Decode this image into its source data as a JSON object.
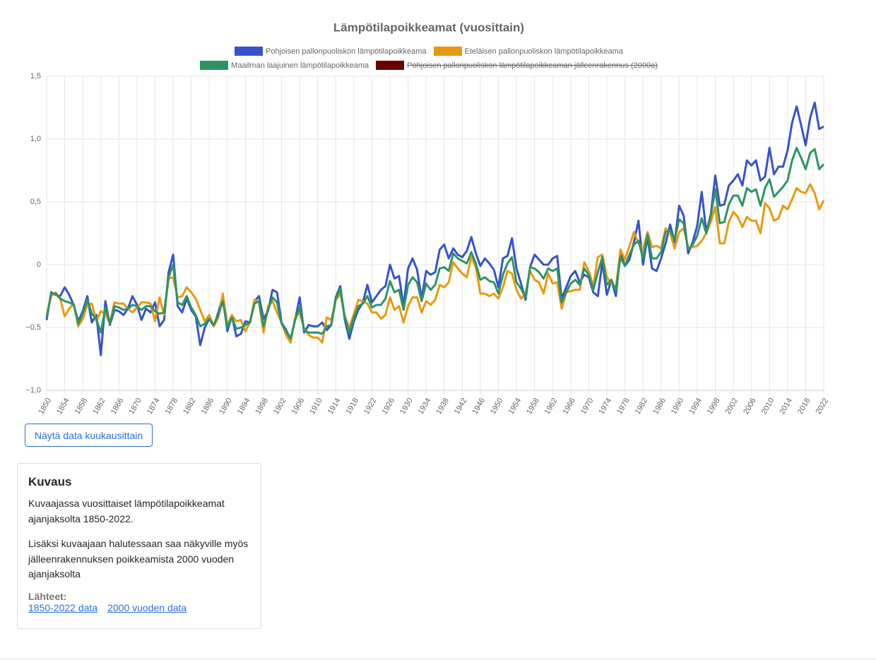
{
  "chart_data": {
    "type": "line",
    "title": "Lämpötilapoikkeamat (vuosittain)",
    "x": [
      1850,
      1851,
      1852,
      1853,
      1854,
      1855,
      1856,
      1857,
      1858,
      1859,
      1860,
      1861,
      1862,
      1863,
      1864,
      1865,
      1866,
      1867,
      1868,
      1869,
      1870,
      1871,
      1872,
      1873,
      1874,
      1875,
      1876,
      1877,
      1878,
      1879,
      1880,
      1881,
      1882,
      1883,
      1884,
      1885,
      1886,
      1887,
      1888,
      1889,
      1890,
      1891,
      1892,
      1893,
      1894,
      1895,
      1896,
      1897,
      1898,
      1899,
      1900,
      1901,
      1902,
      1903,
      1904,
      1905,
      1906,
      1907,
      1908,
      1909,
      1910,
      1911,
      1912,
      1913,
      1914,
      1915,
      1916,
      1917,
      1918,
      1919,
      1920,
      1921,
      1922,
      1923,
      1924,
      1925,
      1926,
      1927,
      1928,
      1929,
      1930,
      1931,
      1932,
      1933,
      1934,
      1935,
      1936,
      1937,
      1938,
      1939,
      1940,
      1941,
      1942,
      1943,
      1944,
      1945,
      1946,
      1947,
      1948,
      1949,
      1950,
      1951,
      1952,
      1953,
      1954,
      1955,
      1956,
      1957,
      1958,
      1959,
      1960,
      1961,
      1962,
      1963,
      1964,
      1965,
      1966,
      1967,
      1968,
      1969,
      1970,
      1971,
      1972,
      1973,
      1974,
      1975,
      1976,
      1977,
      1978,
      1979,
      1980,
      1981,
      1982,
      1983,
      1984,
      1985,
      1986,
      1987,
      1988,
      1989,
      1990,
      1991,
      1992,
      1993,
      1994,
      1995,
      1996,
      1997,
      1998,
      1999,
      2000,
      2001,
      2002,
      2003,
      2004,
      2005,
      2006,
      2007,
      2008,
      2009,
      2010,
      2011,
      2012,
      2013,
      2014,
      2015,
      2016,
      2017,
      2018,
      2019,
      2020,
      2021,
      2022
    ],
    "series": [
      {
        "name": "Pohjoisen pallonpuoliskon lämpötilapoikkeama",
        "color": "#3653c9",
        "values": [
          -0.44,
          -0.22,
          -0.24,
          -0.25,
          -0.18,
          -0.24,
          -0.32,
          -0.45,
          -0.37,
          -0.25,
          -0.46,
          -0.4,
          -0.72,
          -0.29,
          -0.48,
          -0.36,
          -0.37,
          -0.4,
          -0.35,
          -0.25,
          -0.32,
          -0.44,
          -0.35,
          -0.38,
          -0.3,
          -0.49,
          -0.44,
          -0.06,
          0.08,
          -0.33,
          -0.38,
          -0.27,
          -0.36,
          -0.41,
          -0.64,
          -0.5,
          -0.43,
          -0.49,
          -0.38,
          -0.25,
          -0.53,
          -0.41,
          -0.57,
          -0.55,
          -0.45,
          -0.46,
          -0.29,
          -0.25,
          -0.43,
          -0.37,
          -0.2,
          -0.22,
          -0.46,
          -0.52,
          -0.59,
          -0.44,
          -0.26,
          -0.54,
          -0.48,
          -0.49,
          -0.49,
          -0.46,
          -0.52,
          -0.48,
          -0.26,
          -0.17,
          -0.44,
          -0.59,
          -0.45,
          -0.36,
          -0.3,
          -0.16,
          -0.3,
          -0.25,
          -0.2,
          -0.17,
          0.0,
          -0.11,
          -0.09,
          -0.33,
          -0.03,
          0.05,
          -0.04,
          -0.27,
          -0.05,
          -0.08,
          -0.06,
          0.12,
          0.16,
          0.05,
          0.13,
          0.08,
          0.06,
          0.11,
          0.22,
          0.09,
          -0.01,
          0.05,
          0.01,
          -0.04,
          -0.18,
          0.05,
          0.07,
          0.21,
          -0.03,
          -0.15,
          -0.28,
          -0.02,
          0.08,
          0.04,
          0.0,
          0.0,
          0.05,
          0.07,
          -0.27,
          -0.18,
          -0.09,
          -0.05,
          -0.14,
          -0.08,
          -0.1,
          -0.22,
          -0.25,
          0.02,
          -0.24,
          -0.12,
          -0.25,
          0.1,
          -0.01,
          0.04,
          0.18,
          0.35,
          0.0,
          0.22,
          -0.03,
          -0.05,
          0.05,
          0.17,
          0.32,
          0.18,
          0.47,
          0.39,
          0.09,
          0.18,
          0.31,
          0.58,
          0.26,
          0.4,
          0.71,
          0.47,
          0.48,
          0.63,
          0.67,
          0.72,
          0.63,
          0.83,
          0.79,
          0.83,
          0.67,
          0.7,
          0.93,
          0.72,
          0.78,
          0.78,
          0.91,
          1.13,
          1.26,
          1.11,
          0.95,
          1.17,
          1.29,
          1.08,
          1.1
        ]
      },
      {
        "name": "Eteläisen pallonpuoliskon lämpötilapoikkeama",
        "color": "#e8990f",
        "values": [
          -0.41,
          -0.25,
          -0.22,
          -0.27,
          -0.41,
          -0.35,
          -0.31,
          -0.49,
          -0.43,
          -0.32,
          -0.31,
          -0.45,
          -0.37,
          -0.39,
          -0.47,
          -0.3,
          -0.31,
          -0.31,
          -0.35,
          -0.38,
          -0.34,
          -0.3,
          -0.3,
          -0.31,
          -0.45,
          -0.26,
          -0.4,
          -0.11,
          -0.1,
          -0.26,
          -0.25,
          -0.18,
          -0.22,
          -0.27,
          -0.36,
          -0.45,
          -0.4,
          -0.49,
          -0.42,
          -0.23,
          -0.48,
          -0.4,
          -0.45,
          -0.44,
          -0.53,
          -0.46,
          -0.28,
          -0.3,
          -0.54,
          -0.33,
          -0.29,
          -0.38,
          -0.46,
          -0.56,
          -0.62,
          -0.42,
          -0.38,
          -0.51,
          -0.56,
          -0.58,
          -0.58,
          -0.62,
          -0.42,
          -0.44,
          -0.28,
          -0.23,
          -0.41,
          -0.5,
          -0.39,
          -0.28,
          -0.29,
          -0.31,
          -0.38,
          -0.38,
          -0.43,
          -0.4,
          -0.26,
          -0.36,
          -0.33,
          -0.46,
          -0.33,
          -0.26,
          -0.26,
          -0.38,
          -0.29,
          -0.32,
          -0.28,
          -0.16,
          -0.18,
          -0.14,
          0.02,
          -0.03,
          -0.07,
          -0.1,
          0.06,
          -0.02,
          -0.23,
          -0.23,
          -0.25,
          -0.23,
          -0.27,
          -0.18,
          -0.05,
          -0.07,
          -0.2,
          -0.27,
          -0.23,
          -0.05,
          -0.12,
          -0.14,
          -0.23,
          -0.07,
          -0.15,
          -0.14,
          -0.35,
          -0.22,
          -0.21,
          -0.2,
          -0.2,
          0.02,
          -0.05,
          -0.17,
          0.06,
          0.08,
          -0.1,
          -0.15,
          -0.18,
          0.12,
          0.04,
          0.15,
          0.26,
          0.17,
          0.12,
          0.26,
          0.14,
          0.15,
          0.13,
          0.29,
          0.25,
          0.13,
          0.26,
          0.29,
          0.14,
          0.14,
          0.15,
          0.19,
          0.25,
          0.34,
          0.46,
          0.17,
          0.17,
          0.34,
          0.42,
          0.38,
          0.3,
          0.38,
          0.35,
          0.35,
          0.25,
          0.49,
          0.45,
          0.35,
          0.37,
          0.47,
          0.44,
          0.52,
          0.61,
          0.58,
          0.57,
          0.64,
          0.57,
          0.44,
          0.51
        ]
      },
      {
        "name": "Maailman laajuinen lämpötilapoikkeama",
        "color": "#2e9464",
        "values": [
          -0.42,
          -0.23,
          -0.23,
          -0.27,
          -0.29,
          -0.3,
          -0.32,
          -0.47,
          -0.39,
          -0.28,
          -0.39,
          -0.43,
          -0.54,
          -0.34,
          -0.47,
          -0.33,
          -0.34,
          -0.36,
          -0.35,
          -0.32,
          -0.33,
          -0.36,
          -0.33,
          -0.33,
          -0.37,
          -0.39,
          -0.38,
          -0.1,
          0.0,
          -0.3,
          -0.32,
          -0.25,
          -0.34,
          -0.4,
          -0.49,
          -0.47,
          -0.43,
          -0.48,
          -0.4,
          -0.29,
          -0.5,
          -0.42,
          -0.51,
          -0.5,
          -0.48,
          -0.46,
          -0.31,
          -0.29,
          -0.49,
          -0.36,
          -0.26,
          -0.3,
          -0.47,
          -0.53,
          -0.59,
          -0.44,
          -0.34,
          -0.52,
          -0.54,
          -0.54,
          -0.54,
          -0.55,
          -0.49,
          -0.48,
          -0.27,
          -0.19,
          -0.42,
          -0.54,
          -0.42,
          -0.33,
          -0.31,
          -0.25,
          -0.34,
          -0.32,
          -0.32,
          -0.27,
          -0.13,
          -0.22,
          -0.2,
          -0.36,
          -0.16,
          -0.1,
          -0.14,
          -0.29,
          -0.15,
          -0.2,
          -0.16,
          -0.03,
          -0.02,
          -0.05,
          0.09,
          0.05,
          0.03,
          0.01,
          0.1,
          0.01,
          -0.12,
          -0.1,
          -0.13,
          -0.14,
          -0.23,
          -0.08,
          0.01,
          0.06,
          -0.14,
          -0.19,
          -0.26,
          -0.02,
          -0.03,
          -0.06,
          -0.11,
          -0.03,
          -0.05,
          -0.03,
          -0.3,
          -0.22,
          -0.15,
          -0.12,
          -0.16,
          -0.03,
          -0.08,
          -0.2,
          -0.06,
          0.06,
          -0.16,
          -0.12,
          -0.21,
          0.06,
          -0.01,
          0.08,
          0.16,
          0.19,
          0.05,
          0.24,
          0.05,
          0.05,
          0.1,
          0.26,
          0.27,
          0.2,
          0.36,
          0.33,
          0.12,
          0.16,
          0.23,
          0.37,
          0.25,
          0.39,
          0.6,
          0.33,
          0.34,
          0.48,
          0.55,
          0.55,
          0.47,
          0.61,
          0.58,
          0.6,
          0.47,
          0.61,
          0.68,
          0.54,
          0.58,
          0.62,
          0.67,
          0.83,
          0.93,
          0.85,
          0.76,
          0.89,
          0.92,
          0.76,
          0.8
        ]
      }
    ],
    "hidden_series": [
      {
        "name": "Pohjoisen pallonpuoliskon lämpötilapoikkeaman jälleenrakennus (2000a)",
        "color": "#6b0000"
      }
    ],
    "xlim": [
      1850,
      2022
    ],
    "xticks": [
      1850,
      1854,
      1858,
      1862,
      1866,
      1870,
      1874,
      1878,
      1882,
      1886,
      1890,
      1894,
      1898,
      1902,
      1906,
      1910,
      1914,
      1918,
      1922,
      1926,
      1930,
      1934,
      1938,
      1942,
      1946,
      1950,
      1954,
      1958,
      1962,
      1966,
      1970,
      1974,
      1978,
      1982,
      1986,
      1990,
      1994,
      1998,
      2002,
      2006,
      2010,
      2014,
      2018,
      2022
    ],
    "ylim": [
      -1.0,
      1.5
    ],
    "yticks": [
      {
        "value": -1.0,
        "label": "−1,0"
      },
      {
        "value": -0.5,
        "label": "−0,5"
      },
      0,
      {
        "value": 0.5,
        "label": "0,5"
      },
      {
        "value": 1.0,
        "label": "1,0"
      },
      {
        "value": 1.5,
        "label": "1,5"
      }
    ],
    "grid": true,
    "legend": "top"
  },
  "button": {
    "label": "Näytä data kuukausittain"
  },
  "description": {
    "title": "Kuvaus",
    "paragraphs": [
      "Kuvaajassa vuosittaiset lämpötilapoikkeamat ajanjaksolta 1850-2022.",
      "Lisäksi kuvaajaan halutessaan saa näkyville myös jälleenrakennuksen poikkeamista 2000 vuoden ajanjaksolta"
    ],
    "sources_label": "Lähteet:",
    "links": [
      "1850-2022 data",
      "2000 vuoden data"
    ]
  }
}
